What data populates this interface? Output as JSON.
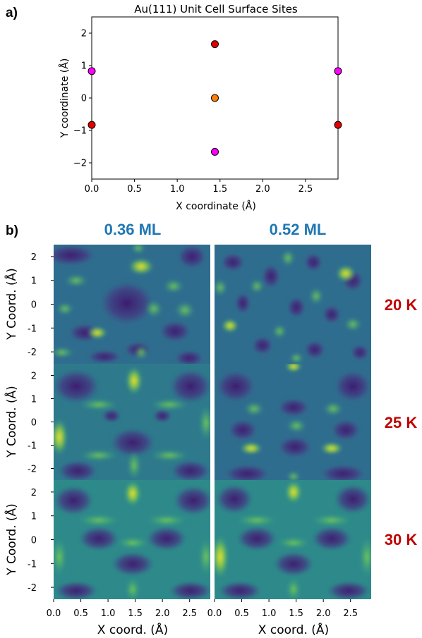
{
  "panels": {
    "a": "a)",
    "b": "b)"
  },
  "chart_data": [
    {
      "type": "scatter",
      "title": "Au(111) Unit Cell Surface Sites",
      "xlabel": "X coordinate (Å)",
      "ylabel": "Y coordinate (Å)",
      "xlim": [
        0,
        2.88
      ],
      "ylim": [
        -2.5,
        2.5
      ],
      "xticks": [
        "0.0",
        "0.5",
        "1.0",
        "1.5",
        "2.0",
        "2.5"
      ],
      "xtick_values": [
        0,
        0.5,
        1.0,
        1.5,
        2.0,
        2.5
      ],
      "yticks": [
        "−2",
        "−1",
        "0",
        "1",
        "2"
      ],
      "ytick_values": [
        -2,
        -1,
        0,
        1,
        2
      ],
      "points": [
        {
          "x": 0.0,
          "y": 0.83,
          "color": "#ff00ff"
        },
        {
          "x": 2.88,
          "y": 0.83,
          "color": "#ff00ff"
        },
        {
          "x": 1.44,
          "y": -1.66,
          "color": "#ff00ff"
        },
        {
          "x": 1.44,
          "y": 1.66,
          "color": "#e00000"
        },
        {
          "x": 0.0,
          "y": -0.83,
          "color": "#e00000"
        },
        {
          "x": 2.88,
          "y": -0.83,
          "color": "#e00000"
        },
        {
          "x": 1.44,
          "y": 0.0,
          "color": "#ff8000"
        }
      ]
    },
    {
      "type": "heatmap",
      "columns": [
        "0.36 ML",
        "0.52 ML"
      ],
      "rows": [
        "20 K",
        "25 K",
        "30 K"
      ],
      "xlabel": "X coord. (Å)",
      "ylabel": "Y Coord. (Å)",
      "xlim": [
        0,
        2.88
      ],
      "ylim": [
        -2.5,
        2.5
      ],
      "xticks": [
        "0.0",
        "0.5",
        "1.0",
        "1.5",
        "2.0",
        "2.5"
      ],
      "xtick_values": [
        0,
        0.5,
        1.0,
        1.5,
        2.0,
        2.5
      ],
      "yticks": [
        "2",
        "1",
        "0",
        "-1",
        "-2"
      ],
      "ytick_values": [
        2,
        1,
        0,
        -1,
        -2
      ],
      "colormap": "viridis"
    }
  ]
}
